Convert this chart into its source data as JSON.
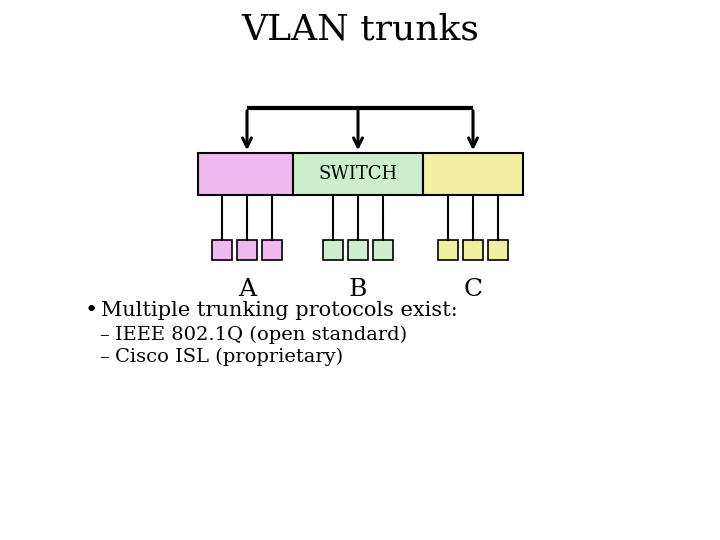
{
  "title": "VLAN trunks",
  "background_color": "#ffffff",
  "switch_label": "SWITCH",
  "switch_color": "#cceecc",
  "left_color": "#f0b8f0",
  "right_color": "#f0f0a0",
  "port_colors_list": [
    "#f0b8f0",
    "#cceecc",
    "#f0f0a0"
  ],
  "group_labels": [
    "A",
    "B",
    "C"
  ],
  "bullet_text": "Multiple trunking protocols exist:",
  "sub_bullets": [
    "IEEE 802.1Q (open standard)",
    "Cisco ISL (proprietary)"
  ],
  "title_fontsize": 26,
  "label_fontsize": 18,
  "body_fontsize": 15,
  "sub_fontsize": 14,
  "switch_fontsize": 13
}
